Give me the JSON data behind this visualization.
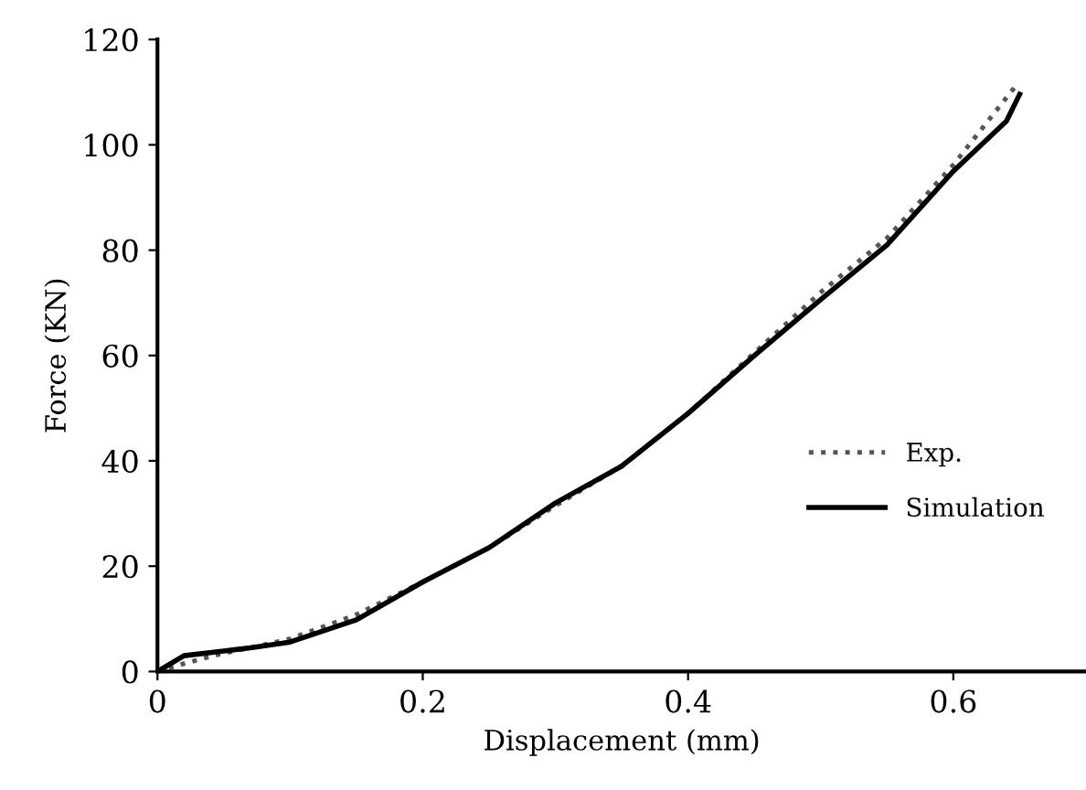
{
  "chart_data": {
    "type": "line",
    "xlabel": "Displacement (mm)",
    "ylabel": "Force (KN)",
    "xlim": [
      0,
      0.7
    ],
    "xticks": [
      0,
      0.2,
      0.4,
      0.6
    ],
    "ylim": [
      0,
      120
    ],
    "yticks": [
      0,
      20,
      40,
      60,
      80,
      100,
      120
    ],
    "grid": false,
    "legend": "right",
    "series": [
      {
        "name": "Exp.",
        "color": "#555555",
        "line_style": "dotted",
        "x": [
          0,
          0.02,
          0.05,
          0.07,
          0.1,
          0.15,
          0.2,
          0.25,
          0.3,
          0.35,
          0.4,
          0.45,
          0.5,
          0.55,
          0.6,
          0.648
        ],
        "values": [
          0,
          1.5,
          3.5,
          4.5,
          6.2,
          10.8,
          17,
          23.5,
          31.5,
          39,
          49,
          60.5,
          72,
          82.3,
          96.2,
          111.5
        ]
      },
      {
        "name": "Simulation",
        "color": "#000000",
        "line_style": "solid",
        "x": [
          0,
          0.02,
          0.05,
          0.07,
          0.1,
          0.15,
          0.2,
          0.25,
          0.3,
          0.35,
          0.4,
          0.45,
          0.5,
          0.55,
          0.6,
          0.64,
          0.65
        ],
        "values": [
          0,
          3,
          3.9,
          4.5,
          5.6,
          9.8,
          17,
          23.5,
          32,
          39,
          49,
          60,
          70.6,
          81,
          95,
          104.5,
          109.6
        ]
      }
    ]
  }
}
